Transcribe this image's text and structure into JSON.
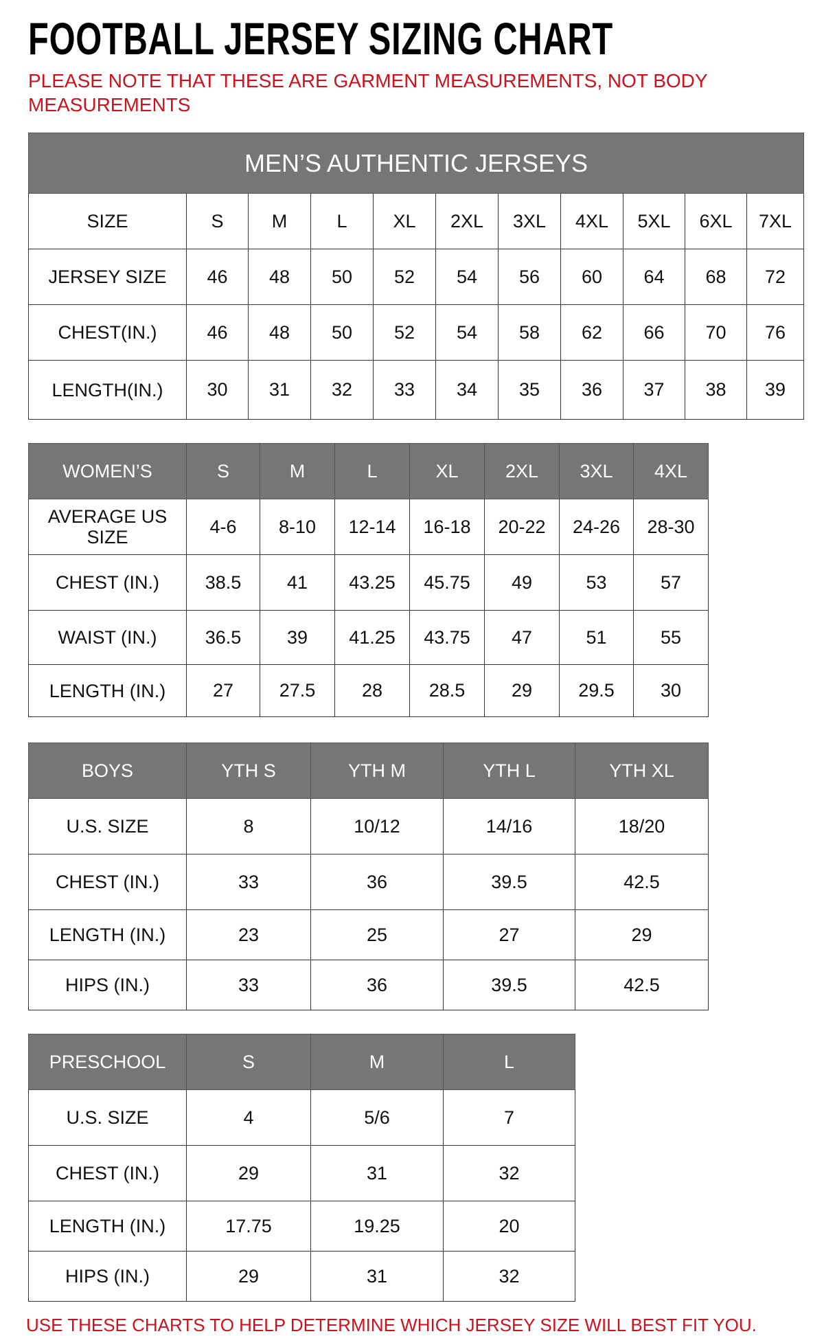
{
  "title": "FOOTBALL JERSEY SIZING CHART",
  "note": "PLEASE NOTE THAT THESE ARE GARMENT MEASUREMENTS, NOT BODY MEASUREMENTS",
  "footer": "USE THESE CHARTS TO HELP DETERMINE WHICH JERSEY SIZE WILL BEST FIT YOU.",
  "colors": {
    "header_gray": "#767676",
    "note_red": "#d0101c"
  },
  "tables": [
    {
      "id": "mens",
      "caption": "MEN’S AUTHENTIC JERSEYS",
      "header": [
        "SIZE",
        "S",
        "M",
        "L",
        "XL",
        "2XL",
        "3XL",
        "4XL",
        "5XL",
        "6XL",
        "7XL"
      ],
      "header_gray": false,
      "rows": [
        [
          "JERSEY SIZE",
          "46",
          "48",
          "50",
          "52",
          "54",
          "56",
          "60",
          "64",
          "68",
          "72"
        ],
        [
          "CHEST(IN.)",
          "46",
          "48",
          "50",
          "52",
          "54",
          "58",
          "62",
          "66",
          "70",
          "76"
        ],
        [
          "LENGTH(IN.)",
          "30",
          "31",
          "32",
          "33",
          "34",
          "35",
          "36",
          "37",
          "38",
          "39"
        ]
      ]
    },
    {
      "id": "womens",
      "header": [
        "WOMEN’S",
        "S",
        "M",
        "L",
        "XL",
        "2XL",
        "3XL",
        "4XL"
      ],
      "header_gray": true,
      "rows": [
        [
          "AVERAGE US SIZE",
          "4-6",
          "8-10",
          "12-14",
          "16-18",
          "20-22",
          "24-26",
          "28-30"
        ],
        [
          "CHEST (IN.)",
          "38.5",
          "41",
          "43.25",
          "45.75",
          "49",
          "53",
          "57"
        ],
        [
          "WAIST (IN.)",
          "36.5",
          "39",
          "41.25",
          "43.75",
          "47",
          "51",
          "55"
        ],
        [
          "LENGTH (IN.)",
          "27",
          "27.5",
          "28",
          "28.5",
          "29",
          "29.5",
          "30"
        ]
      ]
    },
    {
      "id": "boys",
      "header": [
        "BOYS",
        "YTH S",
        "YTH M",
        "YTH L",
        "YTH XL"
      ],
      "header_gray": true,
      "rows": [
        [
          "U.S. SIZE",
          "8",
          "10/12",
          "14/16",
          "18/20"
        ],
        [
          "CHEST (IN.)",
          "33",
          "36",
          "39.5",
          "42.5"
        ],
        [
          "LENGTH (IN.)",
          "23",
          "25",
          "27",
          "29"
        ],
        [
          "HIPS (IN.)",
          "33",
          "36",
          "39.5",
          "42.5"
        ]
      ]
    },
    {
      "id": "preschool",
      "header": [
        "PRESCHOOL",
        "S",
        "M",
        "L"
      ],
      "header_gray": true,
      "rows": [
        [
          "U.S. SIZE",
          "4",
          "5/6",
          "7"
        ],
        [
          "CHEST (IN.)",
          "29",
          "31",
          "32"
        ],
        [
          "LENGTH (IN.)",
          "17.75",
          "19.25",
          "20"
        ],
        [
          "HIPS (IN.)",
          "29",
          "31",
          "32"
        ]
      ]
    }
  ]
}
